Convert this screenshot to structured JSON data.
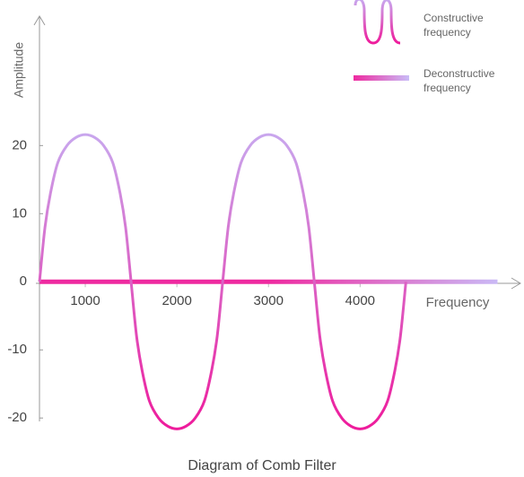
{
  "chart_data": {
    "type": "line",
    "title": "Diagram of Comb Filter",
    "x_label": "Frequency",
    "y_label": "Amplitude",
    "xlim": [
      500,
      5750
    ],
    "ylim": [
      -20.5,
      39
    ],
    "xticks": [
      1000,
      2000,
      3000,
      4000
    ],
    "yticks": [
      -20,
      -10,
      0,
      10,
      20
    ],
    "grid": false,
    "legend": "top-right",
    "series": [
      {
        "name": "Constructive frequency",
        "gradient": [
          "#c8a9ef",
          "#ee1c9c"
        ],
        "x": [
          500,
          560,
          620,
          700,
          800,
          900,
          1000,
          1100,
          1200,
          1300,
          1380,
          1440,
          1500,
          1560,
          1620,
          1700,
          1800,
          1900,
          2000,
          2100,
          2200,
          2300,
          2380,
          2440,
          2500,
          2560,
          2620,
          2700,
          2800,
          2900,
          3000,
          3100,
          3200,
          3300,
          3380,
          3440,
          3500,
          3560,
          3620,
          3700,
          3800,
          3900,
          4000,
          4100,
          4200,
          4300,
          4380,
          4440,
          4500
        ],
        "values": [
          0,
          8,
          13,
          17.5,
          20,
          21.2,
          21.6,
          21.2,
          20,
          17.5,
          13,
          8,
          0,
          -8,
          -13,
          -17.5,
          -20,
          -21.2,
          -21.6,
          -21.2,
          -20,
          -17.5,
          -13,
          -8,
          0,
          8,
          13,
          17.5,
          20,
          21.2,
          21.6,
          21.2,
          20,
          17.5,
          13,
          8,
          0,
          -8,
          -13,
          -17.5,
          -20,
          -21.2,
          -21.6,
          -21.2,
          -20,
          -17.5,
          -13,
          -8,
          0
        ]
      },
      {
        "name": "Deconstructive frequency",
        "gradient": [
          "#ee2aa0",
          "#c9bcf7"
        ],
        "x": [
          500,
          5500
        ],
        "values": [
          0,
          0
        ]
      }
    ]
  }
}
